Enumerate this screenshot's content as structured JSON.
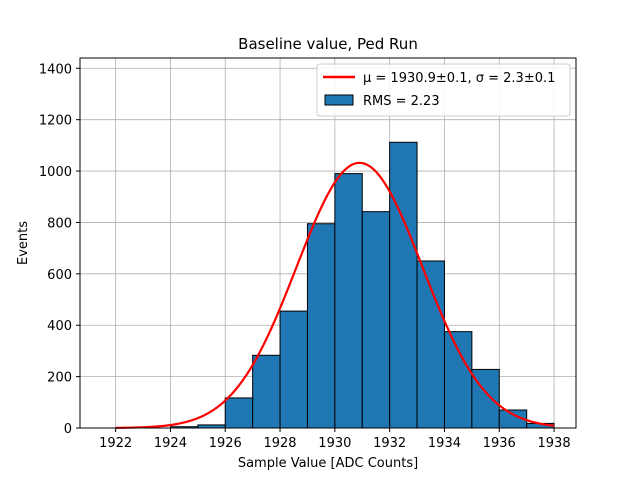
{
  "chart_data": {
    "type": "bar",
    "title": "Baseline value, Ped Run",
    "xlabel": "Sample Value [ADC Counts]",
    "ylabel": "Events",
    "xlim": [
      1920.7,
      1938.8
    ],
    "ylim": [
      0,
      1440
    ],
    "xticks": [
      1922,
      1924,
      1926,
      1928,
      1930,
      1932,
      1934,
      1936,
      1938
    ],
    "yticks": [
      0,
      200,
      400,
      600,
      800,
      1000,
      1200,
      1400
    ],
    "grid": true,
    "legend_position": "top-right",
    "histogram": {
      "name": "RMS = 2.23",
      "color": "#1f77b4",
      "edgecolor": "#000000",
      "bin_edges": [
        1922.0,
        1923.0,
        1924.0,
        1925.0,
        1926.0,
        1927.0,
        1928.0,
        1929.0,
        1930.0,
        1931.0,
        1932.0,
        1933.0,
        1934.0,
        1935.0,
        1936.0,
        1937.0,
        1938.0
      ],
      "counts": [
        0,
        0,
        5,
        12,
        117,
        283,
        455,
        795,
        990,
        842,
        1112,
        650,
        375,
        228,
        70,
        18
      ]
    },
    "fit": {
      "name": "μ = 1930.9±0.1, σ = 2.3±0.1",
      "color": "#ff0000",
      "type": "gaussian",
      "amplitude": 1032,
      "mu": 1930.9,
      "sigma": 2.3,
      "x_range": [
        1922,
        1938
      ]
    }
  }
}
